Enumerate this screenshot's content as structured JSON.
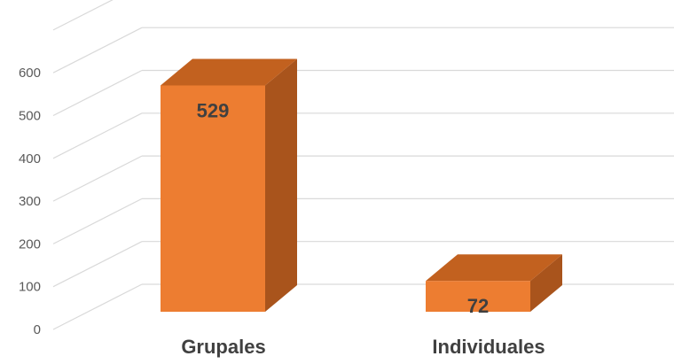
{
  "chart_data": {
    "type": "bar",
    "style": "3d-column",
    "categories": [
      "Grupales",
      "Individuales"
    ],
    "values": [
      529,
      72
    ],
    "data_labels": [
      "529",
      "72"
    ],
    "ylim": [
      0,
      700
    ],
    "yticks": [
      "0",
      "100",
      "200",
      "300",
      "400",
      "500",
      "600"
    ],
    "grid": true,
    "legend": "none",
    "title": "",
    "xlabel": "",
    "ylabel": "",
    "colors": {
      "front": "#ED7D31",
      "side": "#A9541C",
      "top": "#C2611F",
      "grid": "#D9D9D9",
      "text": "#404040",
      "tick": "#595959"
    }
  }
}
